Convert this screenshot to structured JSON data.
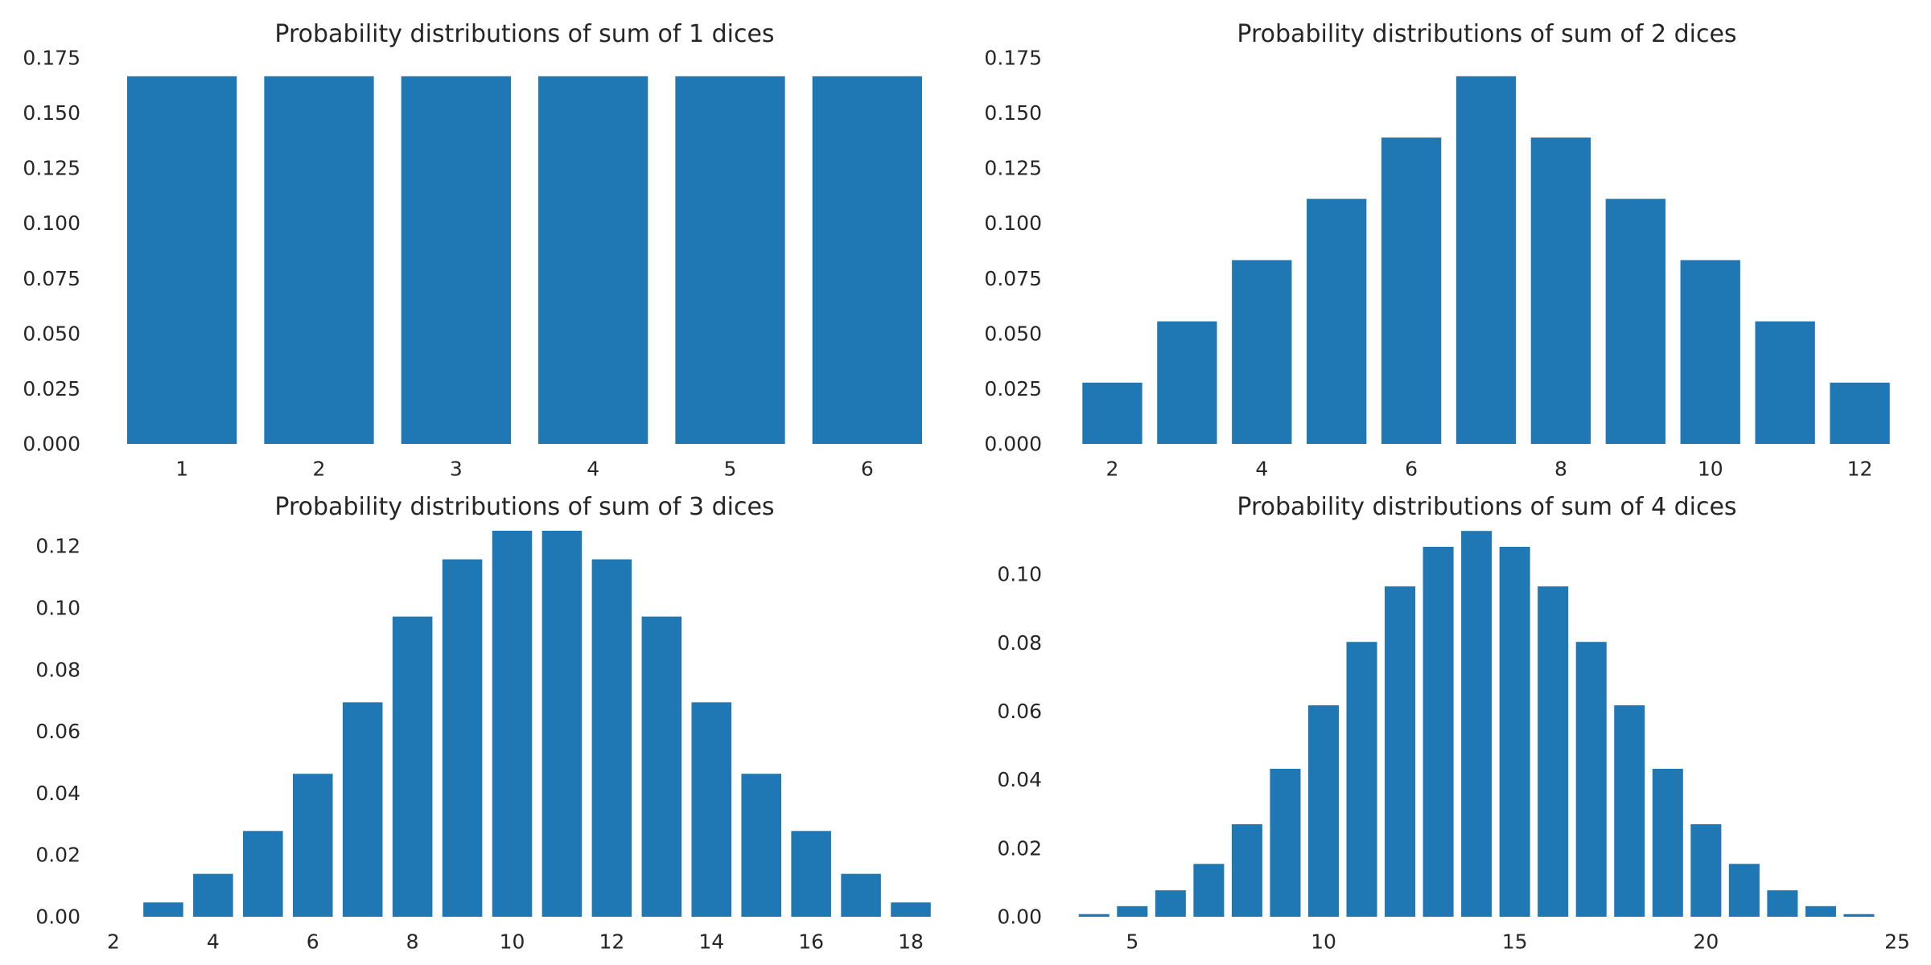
{
  "colors": {
    "bar": "#1f77b4",
    "text": "#262626",
    "background": "#ffffff"
  },
  "chart_data": [
    {
      "type": "bar",
      "title": "Probability distributions of sum of 1 dices",
      "xlabel": "",
      "ylabel": "",
      "grid": false,
      "x": [
        1,
        2,
        3,
        4,
        5,
        6
      ],
      "values": [
        0.16667,
        0.16667,
        0.16667,
        0.16667,
        0.16667,
        0.16667
      ],
      "xlim": [
        0.5,
        6.5
      ],
      "ylim": [
        0,
        0.175
      ],
      "xticks": [
        1,
        2,
        3,
        4,
        5,
        6
      ],
      "yticks": [
        0,
        0.025,
        0.05,
        0.075,
        0.1,
        0.125,
        0.15,
        0.175
      ],
      "xtick_labels": [
        "1",
        "2",
        "3",
        "4",
        "5",
        "6"
      ],
      "ytick_labels": [
        "0.000",
        "0.025",
        "0.050",
        "0.075",
        "0.100",
        "0.125",
        "0.150",
        "0.175"
      ]
    },
    {
      "type": "bar",
      "title": "Probability distributions of sum of 2 dices",
      "xlabel": "",
      "ylabel": "",
      "grid": false,
      "x": [
        2,
        3,
        4,
        5,
        6,
        7,
        8,
        9,
        10,
        11,
        12
      ],
      "values": [
        0.02778,
        0.05556,
        0.08333,
        0.11111,
        0.13889,
        0.16667,
        0.13889,
        0.11111,
        0.08333,
        0.05556,
        0.02778
      ],
      "xlim": [
        1.5,
        12.5
      ],
      "ylim": [
        0,
        0.175
      ],
      "xticks": [
        2,
        4,
        6,
        8,
        10,
        12
      ],
      "yticks": [
        0,
        0.025,
        0.05,
        0.075,
        0.1,
        0.125,
        0.15,
        0.175
      ],
      "xtick_labels": [
        "2",
        "4",
        "6",
        "8",
        "10",
        "12"
      ],
      "ytick_labels": [
        "0.000",
        "0.025",
        "0.050",
        "0.075",
        "0.100",
        "0.125",
        "0.150",
        "0.175"
      ]
    },
    {
      "type": "bar",
      "title": "Probability distributions of sum of 3 dices",
      "xlabel": "",
      "ylabel": "",
      "grid": false,
      "x": [
        3,
        4,
        5,
        6,
        7,
        8,
        9,
        10,
        11,
        12,
        13,
        14,
        15,
        16,
        17,
        18
      ],
      "values": [
        0.00463,
        0.01389,
        0.02778,
        0.0463,
        0.06944,
        0.09722,
        0.11574,
        0.125,
        0.125,
        0.11574,
        0.09722,
        0.06944,
        0.0463,
        0.02778,
        0.01389,
        0.00463
      ],
      "xlim": [
        2,
        18.5
      ],
      "ylim": [
        0,
        0.125
      ],
      "xticks": [
        2,
        4,
        6,
        8,
        10,
        12,
        14,
        16,
        18
      ],
      "yticks": [
        0,
        0.02,
        0.04,
        0.06,
        0.08,
        0.1,
        0.12
      ],
      "xtick_labels": [
        "2",
        "4",
        "6",
        "8",
        "10",
        "12",
        "14",
        "16",
        "18"
      ],
      "ytick_labels": [
        "0.00",
        "0.02",
        "0.04",
        "0.06",
        "0.08",
        "0.10",
        "0.12"
      ]
    },
    {
      "type": "bar",
      "title": "Probability distributions of sum of 4 dices",
      "xlabel": "",
      "ylabel": "",
      "grid": false,
      "x": [
        4,
        5,
        6,
        7,
        8,
        9,
        10,
        11,
        12,
        13,
        14,
        15,
        16,
        17,
        18,
        19,
        20,
        21,
        22,
        23,
        24
      ],
      "values": [
        0.00077,
        0.00309,
        0.00772,
        0.01543,
        0.02701,
        0.04321,
        0.06173,
        0.08025,
        0.09645,
        0.10802,
        0.11265,
        0.10802,
        0.09645,
        0.08025,
        0.06173,
        0.04321,
        0.02701,
        0.01543,
        0.00772,
        0.00309,
        0.00077
      ],
      "xlim": [
        3.5,
        25
      ],
      "ylim": [
        0,
        0.1127
      ],
      "xticks": [
        5,
        10,
        15,
        20,
        25
      ],
      "yticks": [
        0,
        0.02,
        0.04,
        0.06,
        0.08,
        0.1
      ],
      "xtick_labels": [
        "5",
        "10",
        "15",
        "20",
        "25"
      ],
      "ytick_labels": [
        "0.00",
        "0.02",
        "0.04",
        "0.06",
        "0.08",
        "0.10"
      ]
    }
  ]
}
